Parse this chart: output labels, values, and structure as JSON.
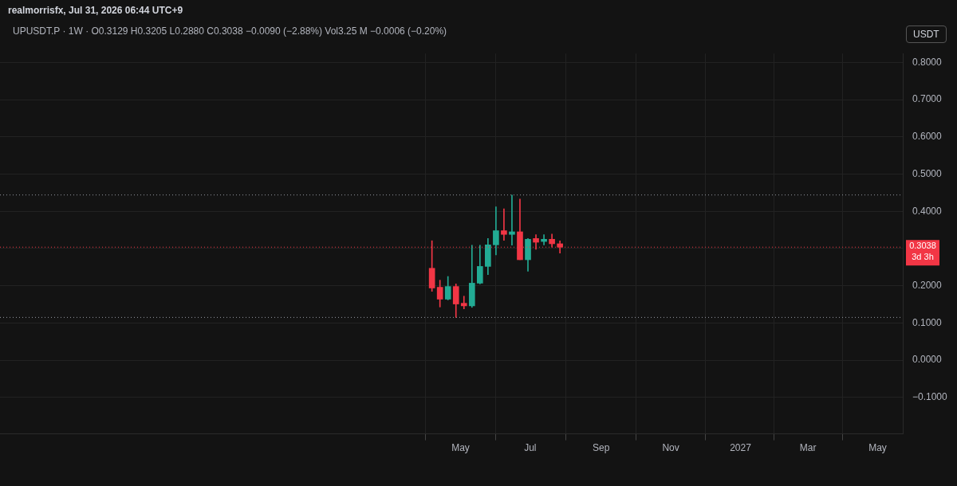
{
  "chart_data": {
    "type": "candlestick",
    "title": "realmorrisfx, Jul 31, 2026 06:44 UTC+9",
    "subtitle": "UPUSDT.P · 1W · O0.3129 H0.3205 L0.2880 C0.3038 −0.0090 (−2.88%) Vol3.25 M −0.0006 (−0.20%)",
    "ylabel": "USDT",
    "x": [
      "2026-04-06",
      "2026-04-13",
      "2026-04-20",
      "2026-04-27",
      "2026-05-04",
      "2026-05-11",
      "2026-05-18",
      "2026-05-25",
      "2026-06-01",
      "2026-06-08",
      "2026-06-15",
      "2026-06-22",
      "2026-06-29",
      "2026-07-06",
      "2026-07-13",
      "2026-07-20",
      "2026-07-27"
    ],
    "ohlc": [
      [
        0.247,
        0.321,
        0.185,
        0.194
      ],
      [
        0.196,
        0.215,
        0.143,
        0.164
      ],
      [
        0.164,
        0.225,
        0.162,
        0.198
      ],
      [
        0.198,
        0.205,
        0.115,
        0.151
      ],
      [
        0.153,
        0.172,
        0.138,
        0.146
      ],
      [
        0.146,
        0.309,
        0.142,
        0.207
      ],
      [
        0.207,
        0.309,
        0.205,
        0.252
      ],
      [
        0.252,
        0.327,
        0.23,
        0.31
      ],
      [
        0.31,
        0.412,
        0.283,
        0.348
      ],
      [
        0.348,
        0.407,
        0.322,
        0.338
      ],
      [
        0.338,
        0.444,
        0.309,
        0.345
      ],
      [
        0.345,
        0.433,
        0.27,
        0.27
      ],
      [
        0.27,
        0.327,
        0.239,
        0.325
      ],
      [
        0.327,
        0.337,
        0.298,
        0.317
      ],
      [
        0.319,
        0.337,
        0.31,
        0.325
      ],
      [
        0.325,
        0.339,
        0.304,
        0.3129
      ],
      [
        0.3129,
        0.3205,
        0.288,
        0.3038
      ]
    ],
    "colors": [
      "#f23645",
      "#f23645",
      "#22ab94",
      "#f23645",
      "#f23645",
      "#22ab94",
      "#22ab94",
      "#22ab94",
      "#22ab94",
      "#f23645",
      "#22ab94",
      "#f23645",
      "#22ab94",
      "#f23645",
      "#22ab94",
      "#f23645",
      "#f23645"
    ],
    "xlim": [
      "2025-03-24",
      "2027-05-23"
    ],
    "xticks": [
      {
        "value": "2026-05-01",
        "label": "May"
      },
      {
        "value": "2026-07-01",
        "label": "Jul"
      },
      {
        "value": "2026-09-01",
        "label": "Sep"
      },
      {
        "value": "2026-11-01",
        "label": "Nov"
      },
      {
        "value": "2027-01-01",
        "label": "2027"
      },
      {
        "value": "2027-03-01",
        "label": "Mar"
      },
      {
        "value": "2027-05-01",
        "label": "May"
      }
    ],
    "ylim": [
      -0.198,
      0.824
    ],
    "yticks": [
      {
        "value": -0.1,
        "label": "−0.1000"
      },
      {
        "value": 0,
        "label": "0.0000"
      },
      {
        "value": 0.1,
        "label": "0.1000"
      },
      {
        "value": 0.2,
        "label": "0.2000"
      },
      {
        "value": 0.3,
        "label": null
      },
      {
        "value": 0.4,
        "label": "0.4000"
      },
      {
        "value": 0.5,
        "label": "0.5000"
      },
      {
        "value": 0.6,
        "label": "0.6000"
      },
      {
        "value": 0.7,
        "label": "0.7000"
      },
      {
        "value": 0.8,
        "label": "0.8000"
      }
    ],
    "ref_lines": [
      {
        "axis": "y",
        "value": 0.444,
        "color": "#9598a1",
        "line_style": "dotted"
      },
      {
        "axis": "y",
        "value": 0.115,
        "color": "#9598a1",
        "line_style": "dotted"
      },
      {
        "axis": "y",
        "value": 0.3038,
        "label": "0.3038\n3d 3h",
        "color": "#f23645",
        "line_style": "dotted"
      }
    ],
    "grid": true
  }
}
